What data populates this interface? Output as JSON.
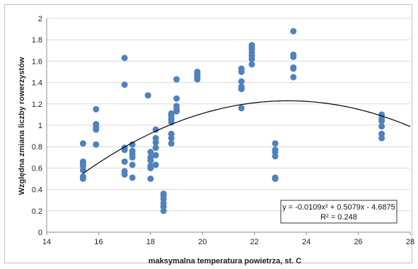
{
  "chart_data": {
    "type": "scatter",
    "xlabel": "maksymalna  temperatura powietrza, st. C",
    "ylabel": "Względna zmiana liczby rowerzystów",
    "xlim": [
      14,
      28
    ],
    "ylim": [
      0,
      2
    ],
    "xticks": [
      "14",
      "16",
      "18",
      "20",
      "22",
      "24",
      "26",
      "28"
    ],
    "yticks": [
      "0",
      "0.2",
      "0.4",
      "0.6",
      "0.8",
      "1",
      "1.2",
      "1.4",
      "1.6",
      "1.8",
      "2"
    ],
    "grid": "horizontal",
    "marker_color": "#4f81bd",
    "trendline": {
      "kind": "polynomial",
      "coefficients": [
        -0.0109,
        0.5079,
        -4.6875
      ],
      "x_range": [
        15.4,
        28
      ],
      "color": "#000000"
    },
    "equation_text": "y = -0.0109x² + 0.5079x - 4.6875",
    "r2_text": "R² = 0.248",
    "points": [
      {
        "x": 15.4,
        "y": 0.83
      },
      {
        "x": 15.4,
        "y": 0.66
      },
      {
        "x": 15.4,
        "y": 0.64
      },
      {
        "x": 15.4,
        "y": 0.62
      },
      {
        "x": 15.4,
        "y": 0.58
      },
      {
        "x": 15.4,
        "y": 0.52
      },
      {
        "x": 15.4,
        "y": 0.5
      },
      {
        "x": 15.9,
        "y": 1.15
      },
      {
        "x": 15.9,
        "y": 1.01
      },
      {
        "x": 15.9,
        "y": 0.98
      },
      {
        "x": 15.9,
        "y": 0.96
      },
      {
        "x": 15.9,
        "y": 0.82
      },
      {
        "x": 17.0,
        "y": 1.63
      },
      {
        "x": 17.0,
        "y": 1.38
      },
      {
        "x": 17.0,
        "y": 0.79
      },
      {
        "x": 17.0,
        "y": 0.77
      },
      {
        "x": 17.0,
        "y": 0.66
      },
      {
        "x": 17.0,
        "y": 0.57
      },
      {
        "x": 17.0,
        "y": 0.54
      },
      {
        "x": 17.3,
        "y": 0.82
      },
      {
        "x": 17.3,
        "y": 0.76
      },
      {
        "x": 17.3,
        "y": 0.73
      },
      {
        "x": 17.3,
        "y": 0.7
      },
      {
        "x": 17.3,
        "y": 0.63
      },
      {
        "x": 17.3,
        "y": 0.51
      },
      {
        "x": 17.9,
        "y": 1.28
      },
      {
        "x": 18.0,
        "y": 0.75
      },
      {
        "x": 18.0,
        "y": 0.7
      },
      {
        "x": 18.0,
        "y": 0.67
      },
      {
        "x": 18.0,
        "y": 0.62
      },
      {
        "x": 18.0,
        "y": 0.6
      },
      {
        "x": 18.0,
        "y": 0.5
      },
      {
        "x": 18.2,
        "y": 0.96
      },
      {
        "x": 18.2,
        "y": 0.88
      },
      {
        "x": 18.2,
        "y": 0.84
      },
      {
        "x": 18.2,
        "y": 0.79
      },
      {
        "x": 18.2,
        "y": 0.72
      },
      {
        "x": 18.2,
        "y": 0.63
      },
      {
        "x": 18.5,
        "y": 0.36
      },
      {
        "x": 18.5,
        "y": 0.34
      },
      {
        "x": 18.5,
        "y": 0.31
      },
      {
        "x": 18.5,
        "y": 0.27
      },
      {
        "x": 18.5,
        "y": 0.24
      },
      {
        "x": 18.5,
        "y": 0.2
      },
      {
        "x": 18.8,
        "y": 1.11
      },
      {
        "x": 18.8,
        "y": 1.09
      },
      {
        "x": 18.8,
        "y": 1.06
      },
      {
        "x": 18.8,
        "y": 1.03
      },
      {
        "x": 18.8,
        "y": 0.92
      },
      {
        "x": 18.8,
        "y": 0.88
      },
      {
        "x": 18.8,
        "y": 0.83
      },
      {
        "x": 19.0,
        "y": 1.43
      },
      {
        "x": 19.0,
        "y": 1.25
      },
      {
        "x": 19.0,
        "y": 1.18
      },
      {
        "x": 19.0,
        "y": 1.15
      },
      {
        "x": 19.0,
        "y": 1.13
      },
      {
        "x": 19.8,
        "y": 1.5
      },
      {
        "x": 19.8,
        "y": 1.48
      },
      {
        "x": 19.8,
        "y": 1.46
      },
      {
        "x": 19.8,
        "y": 1.44
      },
      {
        "x": 19.8,
        "y": 1.43
      },
      {
        "x": 21.5,
        "y": 1.53
      },
      {
        "x": 21.5,
        "y": 1.5
      },
      {
        "x": 21.5,
        "y": 1.41
      },
      {
        "x": 21.5,
        "y": 1.36
      },
      {
        "x": 21.5,
        "y": 1.34
      },
      {
        "x": 21.5,
        "y": 1.16
      },
      {
        "x": 21.9,
        "y": 1.75
      },
      {
        "x": 21.9,
        "y": 1.73
      },
      {
        "x": 21.9,
        "y": 1.71
      },
      {
        "x": 21.9,
        "y": 1.68
      },
      {
        "x": 21.9,
        "y": 1.65
      },
      {
        "x": 21.9,
        "y": 1.62
      },
      {
        "x": 21.9,
        "y": 1.57
      },
      {
        "x": 22.8,
        "y": 0.83
      },
      {
        "x": 22.8,
        "y": 0.77
      },
      {
        "x": 22.8,
        "y": 0.75
      },
      {
        "x": 22.8,
        "y": 0.71
      },
      {
        "x": 22.8,
        "y": 0.51
      },
      {
        "x": 22.8,
        "y": 0.5
      },
      {
        "x": 23.5,
        "y": 1.88
      },
      {
        "x": 23.5,
        "y": 1.66
      },
      {
        "x": 23.5,
        "y": 1.64
      },
      {
        "x": 23.5,
        "y": 1.54
      },
      {
        "x": 23.5,
        "y": 1.53
      },
      {
        "x": 23.5,
        "y": 1.45
      },
      {
        "x": 26.9,
        "y": 1.1
      },
      {
        "x": 26.9,
        "y": 1.06
      },
      {
        "x": 26.9,
        "y": 1.04
      },
      {
        "x": 26.9,
        "y": 0.99
      },
      {
        "x": 26.9,
        "y": 0.92
      },
      {
        "x": 26.9,
        "y": 0.88
      }
    ]
  }
}
